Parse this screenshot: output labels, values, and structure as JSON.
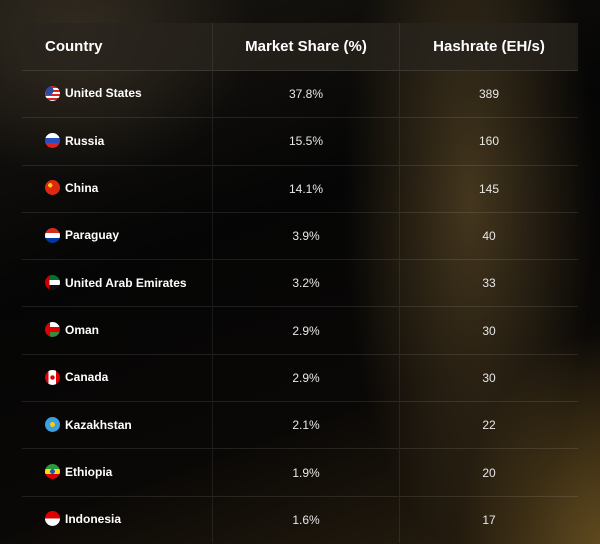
{
  "headers": {
    "country": "Country",
    "share": "Market Share (%)",
    "hashrate": "Hashrate (EH/s)"
  },
  "rows": [
    {
      "country": "United States",
      "share": "37.8%",
      "hashrate": "389",
      "flag": "us-flag-icon"
    },
    {
      "country": "Russia",
      "share": "15.5%",
      "hashrate": "160",
      "flag": "russia-flag-icon"
    },
    {
      "country": "China",
      "share": "14.1%",
      "hashrate": "145",
      "flag": "china-flag-icon"
    },
    {
      "country": "Paraguay",
      "share": "3.9%",
      "hashrate": "40",
      "flag": "paraguay-flag-icon"
    },
    {
      "country": "United Arab Emirates",
      "share": "3.2%",
      "hashrate": "33",
      "flag": "uae-flag-icon"
    },
    {
      "country": "Oman",
      "share": "2.9%",
      "hashrate": "30",
      "flag": "oman-flag-icon"
    },
    {
      "country": "Canada",
      "share": "2.9%",
      "hashrate": "30",
      "flag": "canada-flag-icon"
    },
    {
      "country": "Kazakhstan",
      "share": "2.1%",
      "hashrate": "22",
      "flag": "kazakhstan-flag-icon"
    },
    {
      "country": "Ethiopia",
      "share": "1.9%",
      "hashrate": "20",
      "flag": "ethiopia-flag-icon"
    },
    {
      "country": "Indonesia",
      "share": "1.6%",
      "hashrate": "17",
      "flag": "indonesia-flag-icon"
    }
  ]
}
